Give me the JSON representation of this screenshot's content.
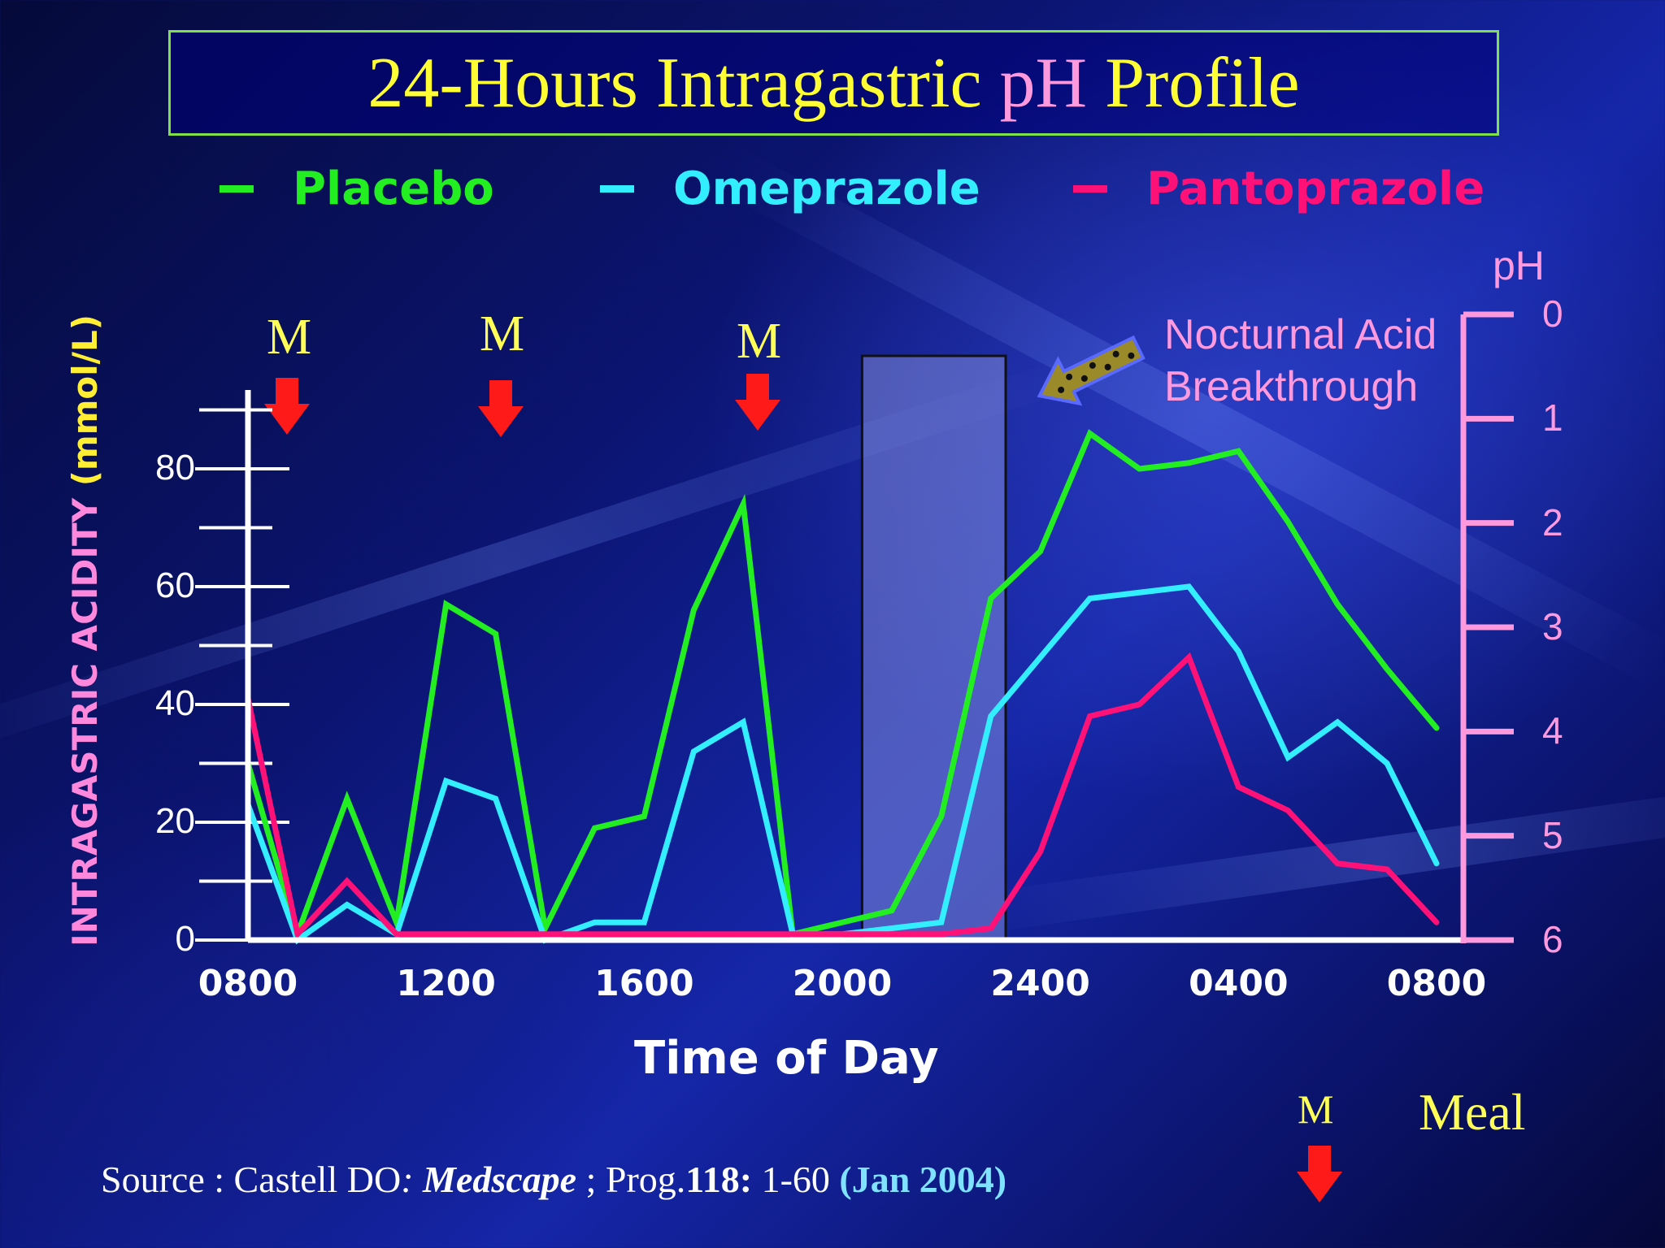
{
  "title": {
    "main": "24-Hours Intragastric ",
    "ph": "pH",
    "rest": " Profile"
  },
  "legend": [
    {
      "label": "Placebo",
      "color": "#22ee22"
    },
    {
      "label": "Omeprazole",
      "color": "#33eeff"
    },
    {
      "label": "Pantoprazole",
      "color": "#ff1177"
    }
  ],
  "meal_marker": "M",
  "meal_legend": {
    "marker": "M",
    "label": "Meal"
  },
  "annotation": {
    "line1": "Nocturnal Acid",
    "line2": "Breakthrough"
  },
  "source": {
    "prefix": "Source : Castell DO",
    "colon": ":",
    "journal": " Medscape",
    "mid": " ; Prog.",
    "volume": "118:",
    "pages": " 1-60 ",
    "date": "(Jan 2004)"
  },
  "chart_data": {
    "type": "line",
    "title": "24-Hours Intragastric pH Profile",
    "xlabel": "Time of Day",
    "ylabel": {
      "part1": "INTRAGASTRIC ACIDITY ",
      "part2": "(mmol/L)"
    },
    "y2label": "pH",
    "x_tick_labels": [
      "0800",
      "1200",
      "1600",
      "2000",
      "2400",
      "0400",
      "0800"
    ],
    "x_range_hours": [
      0,
      24
    ],
    "ylim": [
      0,
      92
    ],
    "y_ticks": [
      0,
      20,
      40,
      60,
      80
    ],
    "y2_ticks": [
      0,
      1,
      2,
      3,
      4,
      5,
      6
    ],
    "meal_times_hours": [
      0.8,
      5.1,
      10.3
    ],
    "highlight_range_hours": [
      12.4,
      15.3
    ],
    "series": [
      {
        "name": "Placebo",
        "color": "#22ee22",
        "x": [
          0,
          1,
          2,
          3,
          4,
          5,
          6,
          7,
          8,
          9,
          10,
          11,
          12,
          13,
          14,
          15,
          16,
          17,
          18,
          19,
          20,
          21,
          22,
          23,
          24
        ],
        "y": [
          30,
          1,
          24,
          3,
          57,
          52,
          2,
          19,
          21,
          56,
          74,
          1,
          3,
          5,
          21,
          58,
          66,
          86,
          80,
          81,
          83,
          71,
          57,
          46,
          36
        ]
      },
      {
        "name": "Omeprazole",
        "color": "#33eeff",
        "x": [
          0,
          1,
          2,
          3,
          4,
          5,
          6,
          7,
          8,
          9,
          10,
          11,
          12,
          13,
          14,
          15,
          16,
          17,
          18,
          19,
          20,
          21,
          22,
          23,
          24
        ],
        "y": [
          23,
          0,
          6,
          1,
          27,
          24,
          0,
          3,
          3,
          32,
          37,
          1,
          1,
          2,
          3,
          38,
          48,
          58,
          59,
          60,
          49,
          31,
          37,
          30,
          13
        ]
      },
      {
        "name": "Pantoprazole",
        "color": "#ff1177",
        "x": [
          0,
          1,
          2,
          3,
          4,
          5,
          6,
          7,
          8,
          9,
          10,
          11,
          12,
          13,
          14,
          15,
          16,
          17,
          18,
          19,
          20,
          21,
          22,
          23,
          24
        ],
        "y": [
          41,
          1,
          10,
          1,
          1,
          1,
          1,
          1,
          1,
          1,
          1,
          1,
          1,
          1,
          1,
          2,
          15,
          38,
          40,
          48,
          26,
          22,
          13,
          12,
          3
        ]
      }
    ]
  }
}
